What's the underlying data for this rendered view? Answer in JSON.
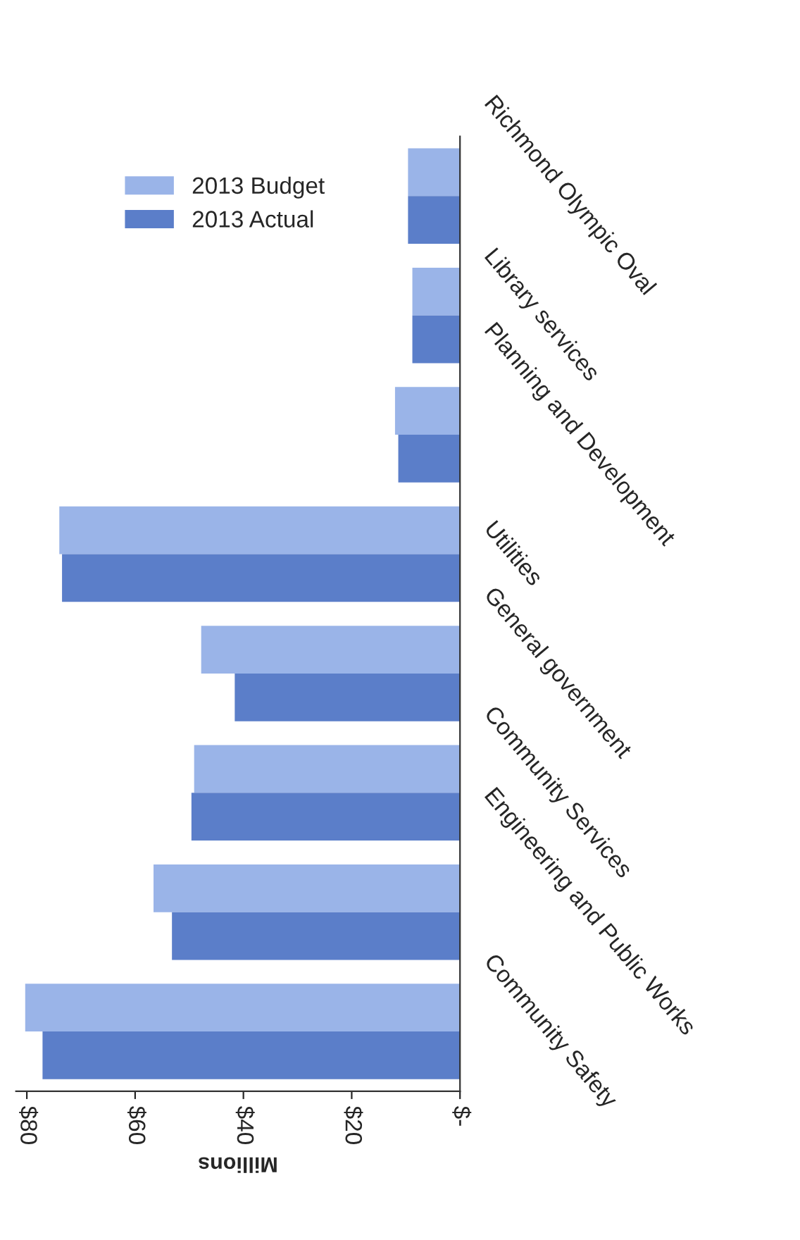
{
  "chart_data": {
    "type": "bar",
    "orientation": "horizontal",
    "xlabel": "Millions",
    "categories": [
      "Richmond Olympic Oval",
      "Library services",
      "Planning and Development",
      "Utilities",
      "General government",
      "Community Services",
      "Engineering and Public Works",
      "Community Safety"
    ],
    "series": [
      {
        "name": "2013 Budget",
        "color": "#9ab4e8",
        "values": [
          9.6,
          8.8,
          12,
          74,
          47.8,
          49.1,
          56.6,
          80.3
        ]
      },
      {
        "name": "2013 Actual",
        "color": "#5b7ec9",
        "values": [
          9.6,
          8.8,
          11.4,
          73.5,
          41.6,
          49.6,
          53.2,
          77.1
        ]
      }
    ],
    "xlim": [
      82,
      0
    ],
    "xticks": [
      {
        "value": 0,
        "label": "$-"
      },
      {
        "value": 20,
        "label": "$20"
      },
      {
        "value": 40,
        "label": "$40"
      },
      {
        "value": 60,
        "label": "$60"
      },
      {
        "value": 80,
        "label": "$80"
      }
    ],
    "legend": "top left",
    "grid": false
  }
}
